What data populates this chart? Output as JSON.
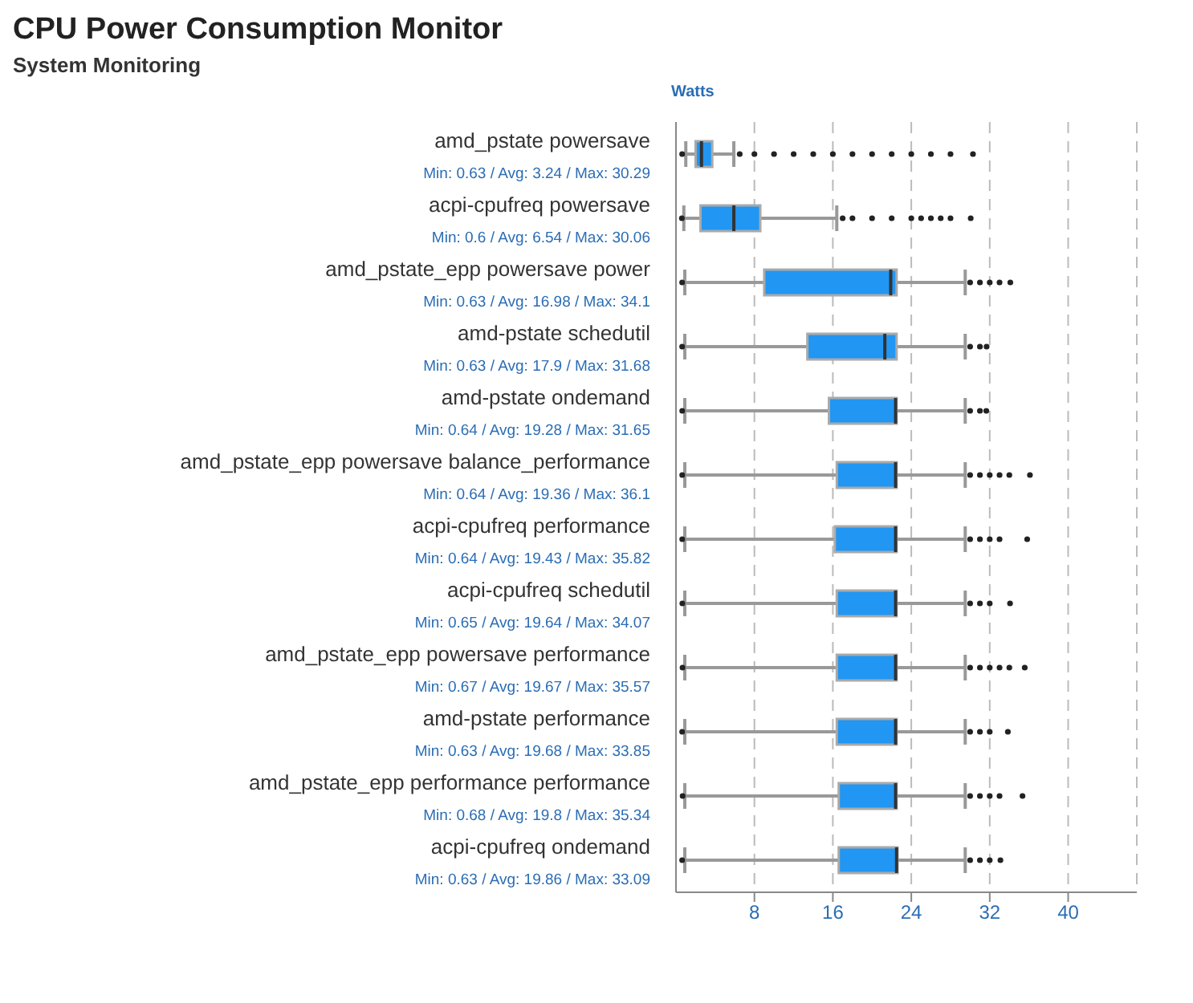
{
  "chart_data": {
    "type": "box",
    "title": "CPU Power Consumption Monitor",
    "subtitle": "System Monitoring",
    "xlabel": "Watts",
    "orientation": "horizontal",
    "categories": [
      "amd_pstate powersave",
      "acpi-cpufreq powersave",
      "amd_pstate_epp powersave power",
      "amd-pstate schedutil",
      "amd-pstate ondemand",
      "amd_pstate_epp powersave balance_performance",
      "acpi-cpufreq performance",
      "acpi-cpufreq schedutil",
      "amd_pstate_epp powersave performance",
      "amd-pstate performance",
      "amd_pstate_epp performance performance",
      "acpi-cpufreq ondemand"
    ],
    "annotations": [
      "Min: 0.63 / Avg: 3.24 / Max: 30.29",
      "Min: 0.6 / Avg: 6.54 / Max: 30.06",
      "Min: 0.63 / Avg: 16.98 / Max: 34.1",
      "Min: 0.63 / Avg: 17.9 / Max: 31.68",
      "Min: 0.64 / Avg: 19.28 / Max: 31.65",
      "Min: 0.64 / Avg: 19.36 / Max: 36.1",
      "Min: 0.64 / Avg: 19.43 / Max: 35.82",
      "Min: 0.65 / Avg: 19.64 / Max: 34.07",
      "Min: 0.67 / Avg: 19.67 / Max: 35.57",
      "Min: 0.63 / Avg: 19.68 / Max: 33.85",
      "Min: 0.68 / Avg: 19.8 / Max: 35.34",
      "Min: 0.63 / Avg: 19.86 / Max: 33.09"
    ],
    "color": "#2196f3",
    "boxes": [
      {
        "low": 1.0,
        "q1": 2.0,
        "median": 2.6,
        "q3": 3.7,
        "high": 5.9,
        "outliers": [
          0.63,
          6.5,
          8,
          10,
          12,
          14,
          16,
          18,
          20,
          22,
          24,
          26,
          28,
          30.29
        ]
      },
      {
        "low": 0.8,
        "q1": 2.5,
        "median": 5.9,
        "q3": 8.6,
        "high": 16.4,
        "outliers": [
          0.6,
          17,
          18,
          20,
          22,
          24,
          25,
          26,
          27,
          28,
          30.06
        ]
      },
      {
        "low": 0.9,
        "q1": 9.0,
        "median": 21.9,
        "q3": 22.5,
        "high": 29.5,
        "outliers": [
          0.63,
          30,
          31,
          32,
          33,
          34.1
        ]
      },
      {
        "low": 0.9,
        "q1": 13.4,
        "median": 21.3,
        "q3": 22.5,
        "high": 29.5,
        "outliers": [
          0.63,
          30,
          31,
          31.68
        ]
      },
      {
        "low": 0.9,
        "q1": 15.6,
        "median": 22.4,
        "q3": 22.5,
        "high": 29.5,
        "outliers": [
          0.64,
          30,
          31,
          31.65
        ]
      },
      {
        "low": 0.9,
        "q1": 16.4,
        "median": 22.4,
        "q3": 22.5,
        "high": 29.5,
        "outliers": [
          0.64,
          30,
          31,
          32,
          33,
          34,
          36.1
        ]
      },
      {
        "low": 0.9,
        "q1": 16.2,
        "median": 22.4,
        "q3": 22.5,
        "high": 29.5,
        "outliers": [
          0.64,
          30,
          31,
          32,
          33,
          35.82
        ]
      },
      {
        "low": 0.9,
        "q1": 16.4,
        "median": 22.4,
        "q3": 22.5,
        "high": 29.5,
        "outliers": [
          0.65,
          30,
          31,
          32,
          34.07
        ]
      },
      {
        "low": 0.9,
        "q1": 16.4,
        "median": 22.4,
        "q3": 22.5,
        "high": 29.5,
        "outliers": [
          0.67,
          30,
          31,
          32,
          33,
          34,
          35.57
        ]
      },
      {
        "low": 0.9,
        "q1": 16.4,
        "median": 22.4,
        "q3": 22.5,
        "high": 29.5,
        "outliers": [
          0.63,
          30,
          31,
          32,
          33.85
        ]
      },
      {
        "low": 0.9,
        "q1": 16.6,
        "median": 22.4,
        "q3": 22.5,
        "high": 29.5,
        "outliers": [
          0.68,
          30,
          31,
          32,
          33,
          35.34
        ]
      },
      {
        "low": 0.9,
        "q1": 16.6,
        "median": 22.5,
        "q3": 22.6,
        "high": 29.5,
        "outliers": [
          0.63,
          30,
          31,
          32,
          33.09
        ]
      }
    ],
    "xlim": [
      0,
      47
    ],
    "xticks": [
      8,
      16,
      24,
      32,
      40
    ],
    "grid": "x"
  }
}
